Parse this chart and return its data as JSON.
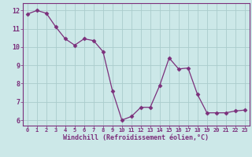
{
  "x": [
    0,
    1,
    2,
    3,
    4,
    5,
    6,
    7,
    8,
    9,
    10,
    11,
    12,
    13,
    14,
    15,
    16,
    17,
    18,
    19,
    20,
    21,
    22,
    23
  ],
  "y": [
    11.8,
    12.0,
    11.85,
    11.1,
    10.45,
    10.1,
    10.45,
    10.35,
    9.75,
    7.6,
    6.0,
    6.2,
    6.7,
    6.7,
    7.9,
    9.4,
    8.8,
    8.85,
    7.4,
    6.4,
    6.4,
    6.4,
    6.5,
    6.55
  ],
  "line_color": "#7b2f7b",
  "marker": "D",
  "marker_size": 2.5,
  "bg_color": "#cce8e8",
  "grid_color": "#aacccc",
  "xlabel": "Windchill (Refroidissement éolien,°C)",
  "xlabel_color": "#7b2f7b",
  "tick_color": "#7b2f7b",
  "ylim": [
    5.7,
    12.4
  ],
  "xlim": [
    -0.5,
    23.5
  ],
  "yticks": [
    6,
    7,
    8,
    9,
    10,
    11,
    12
  ],
  "xticks": [
    0,
    1,
    2,
    3,
    4,
    5,
    6,
    7,
    8,
    9,
    10,
    11,
    12,
    13,
    14,
    15,
    16,
    17,
    18,
    19,
    20,
    21,
    22,
    23
  ]
}
